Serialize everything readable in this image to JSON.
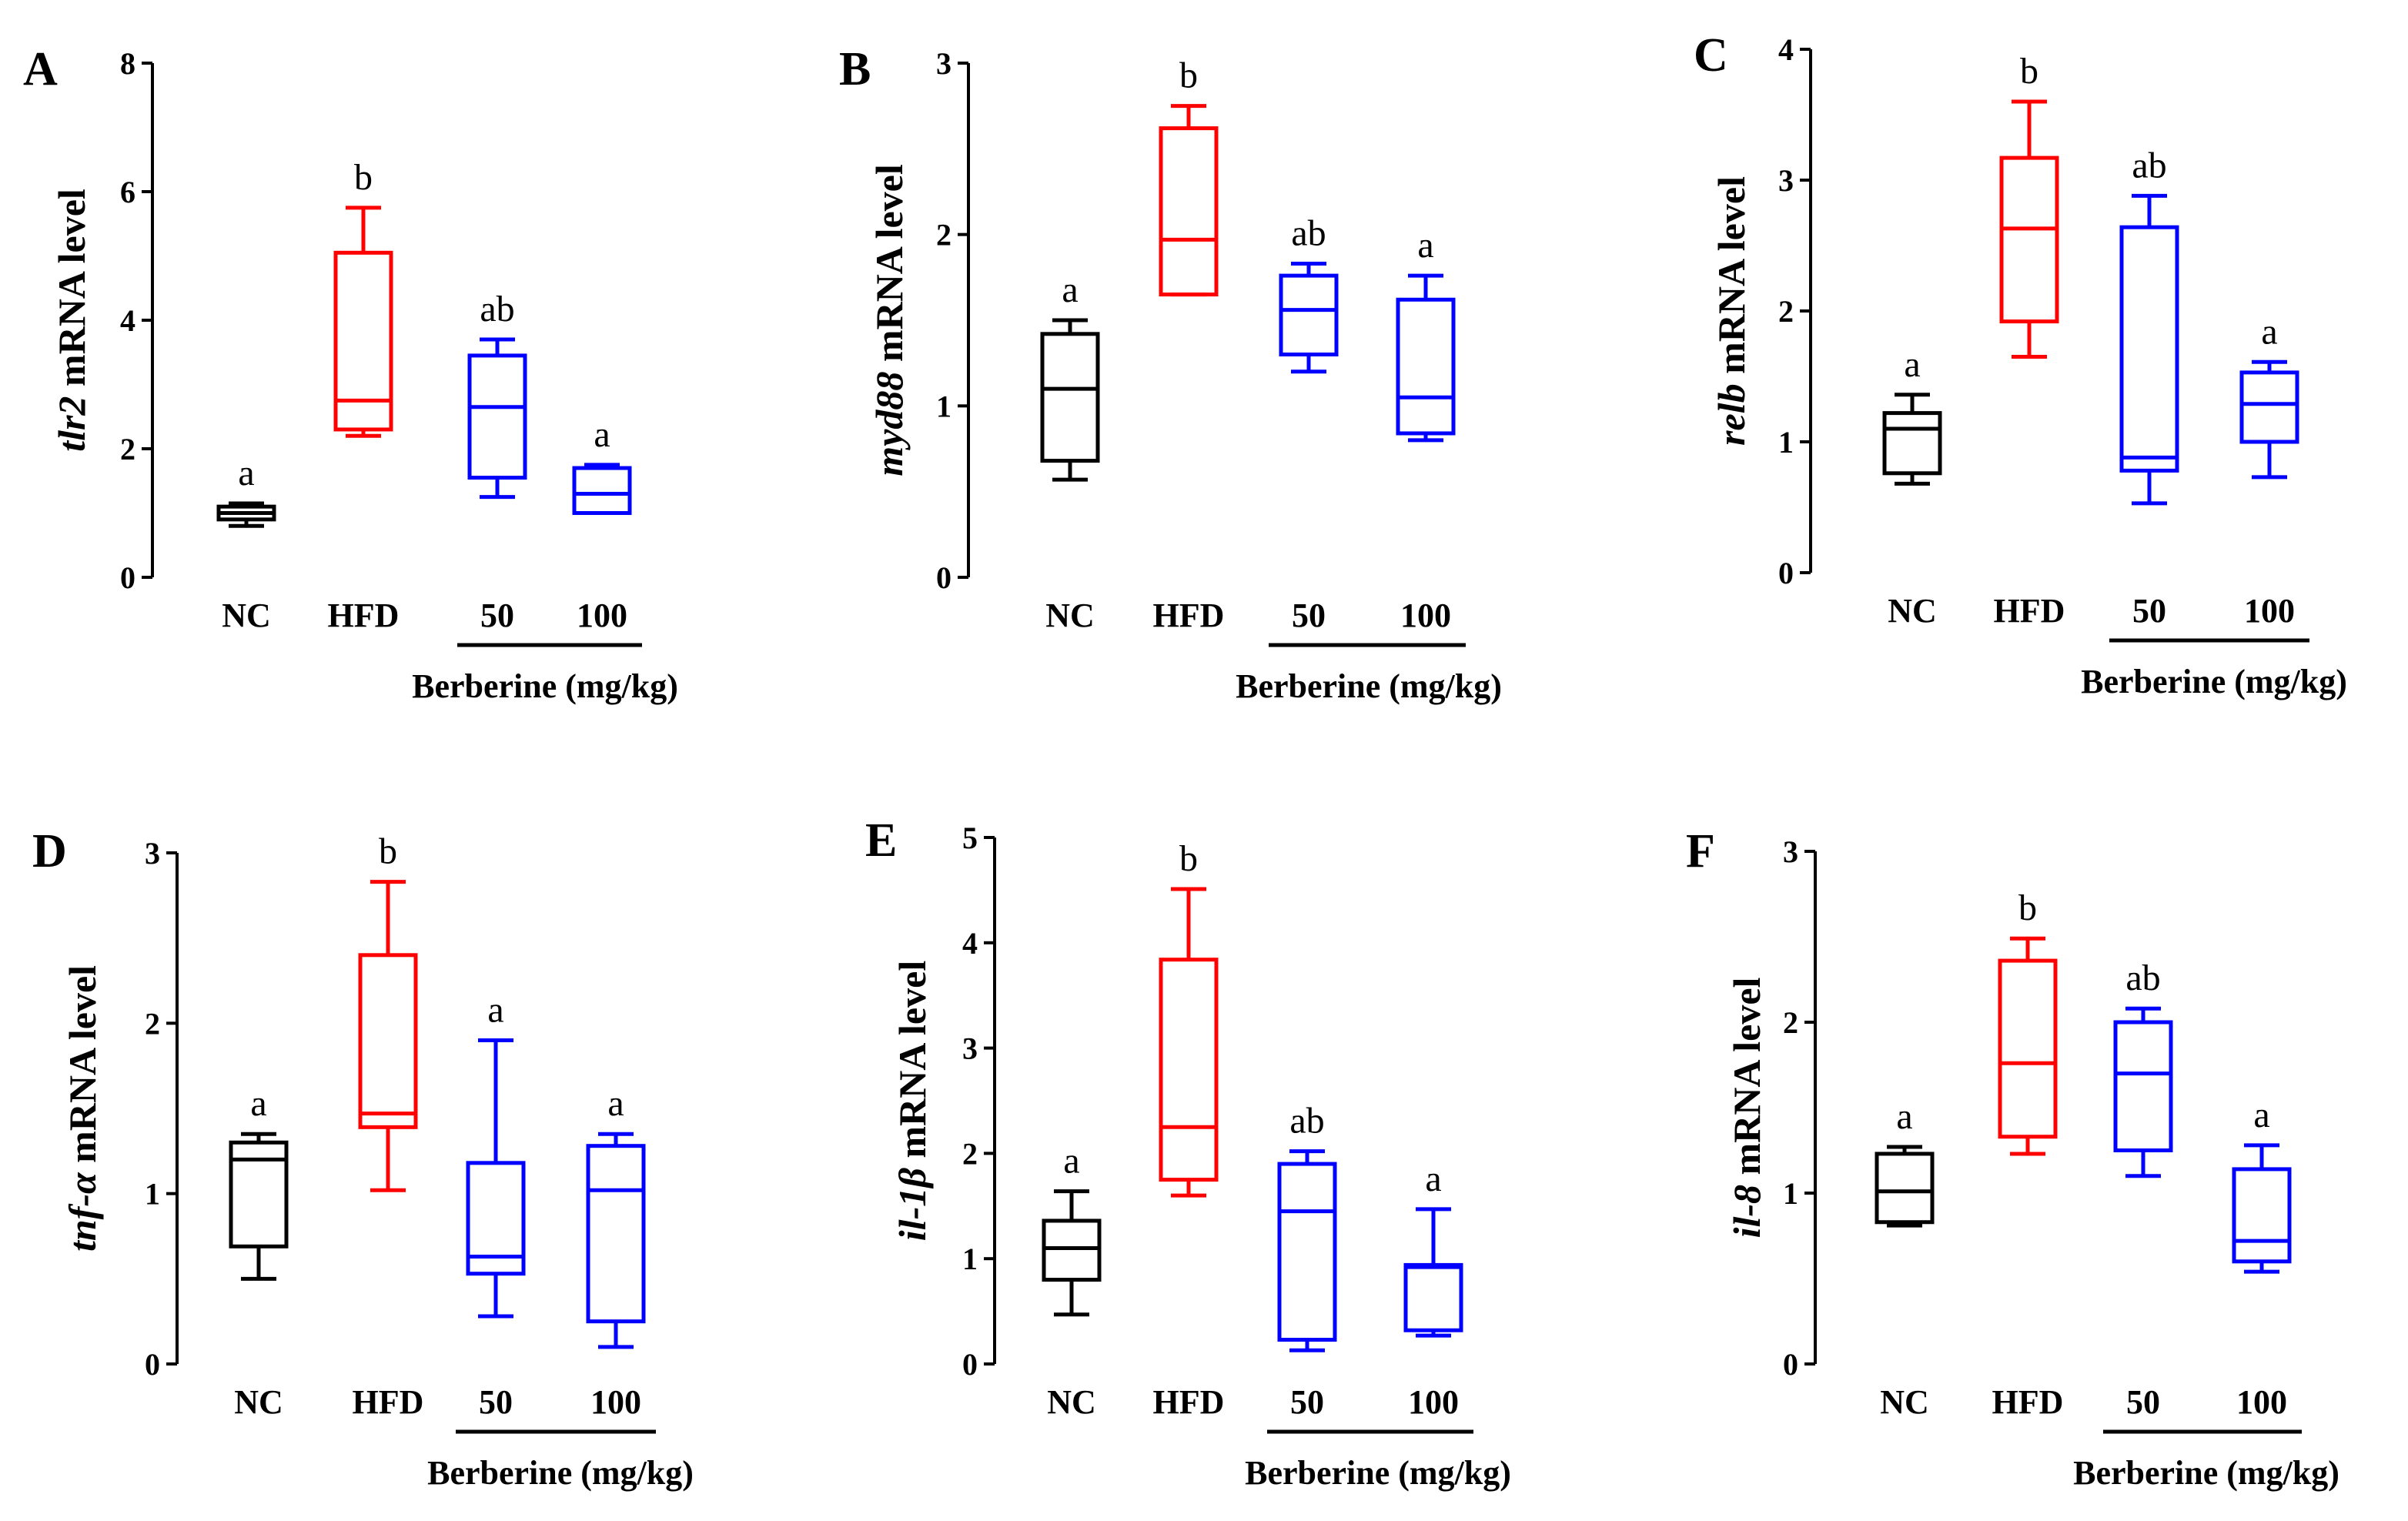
{
  "figure": {
    "colors": {
      "NC": "#000000",
      "HFD": "#ff0000",
      "50": "#0000ff",
      "100": "#0000ff"
    },
    "panels": [
      {
        "letter": "A",
        "ylabel": {
          "gene": "tlr2",
          "suffix": " mRNA level"
        },
        "group_label": "Berberine (mg/kg)",
        "chart_data": {
          "type": "box",
          "categories": [
            "NC",
            "HFD",
            "50",
            "100"
          ],
          "ylim": [
            0,
            8
          ],
          "yticks": [
            0,
            2,
            4,
            6,
            8
          ],
          "boxes": [
            {
              "min": 0.8,
              "q1": 0.9,
              "median": 1.0,
              "q3": 1.1,
              "max": 1.15
            },
            {
              "min": 2.2,
              "q1": 2.3,
              "median": 2.75,
              "q3": 5.05,
              "max": 5.75
            },
            {
              "min": 1.25,
              "q1": 1.55,
              "median": 2.65,
              "q3": 3.45,
              "max": 3.7
            },
            {
              "min": 1.0,
              "q1": 1.0,
              "median": 1.3,
              "q3": 1.7,
              "max": 1.75
            }
          ],
          "letters": [
            "a",
            "b",
            "ab",
            "a"
          ]
        }
      },
      {
        "letter": "B",
        "ylabel": {
          "gene": "myd88",
          "suffix": " mRNA level"
        },
        "group_label": "Berberine (mg/kg)",
        "chart_data": {
          "type": "box",
          "categories": [
            "NC",
            "HFD",
            "50",
            "100"
          ],
          "ylim": [
            0,
            3
          ],
          "yticks": [
            0,
            1,
            2,
            3
          ],
          "boxes": [
            {
              "min": 0.57,
              "q1": 0.68,
              "median": 1.1,
              "q3": 1.42,
              "max": 1.5
            },
            {
              "min": 1.65,
              "q1": 1.65,
              "median": 1.97,
              "q3": 2.62,
              "max": 2.75
            },
            {
              "min": 1.2,
              "q1": 1.3,
              "median": 1.56,
              "q3": 1.76,
              "max": 1.83
            },
            {
              "min": 0.8,
              "q1": 0.84,
              "median": 1.05,
              "q3": 1.62,
              "max": 1.76
            }
          ],
          "letters": [
            "a",
            "b",
            "ab",
            "a"
          ]
        }
      },
      {
        "letter": "C",
        "ylabel": {
          "gene": "relb",
          "suffix": " mRNA level"
        },
        "group_label": "Berberine (mg/kg)",
        "chart_data": {
          "type": "box",
          "categories": [
            "NC",
            "HFD",
            "50",
            "100"
          ],
          "ylim": [
            0,
            4
          ],
          "yticks": [
            0,
            1,
            2,
            3,
            4
          ],
          "boxes": [
            {
              "min": 0.68,
              "q1": 0.76,
              "median": 1.1,
              "q3": 1.22,
              "max": 1.36
            },
            {
              "min": 1.65,
              "q1": 1.92,
              "median": 2.63,
              "q3": 3.17,
              "max": 3.6
            },
            {
              "min": 0.53,
              "q1": 0.78,
              "median": 0.88,
              "q3": 2.64,
              "max": 2.88
            },
            {
              "min": 0.73,
              "q1": 1.0,
              "median": 1.29,
              "q3": 1.53,
              "max": 1.61
            }
          ],
          "letters": [
            "a",
            "b",
            "ab",
            "a"
          ]
        }
      },
      {
        "letter": "D",
        "ylabel": {
          "gene": "tnf-α",
          "suffix": " mRNA level"
        },
        "group_label": "Berberine (mg/kg)",
        "chart_data": {
          "type": "box",
          "categories": [
            "NC",
            "HFD",
            "50",
            "100"
          ],
          "ylim": [
            0,
            3
          ],
          "yticks": [
            0,
            1,
            2,
            3
          ],
          "boxes": [
            {
              "min": 0.5,
              "q1": 0.69,
              "median": 1.2,
              "q3": 1.3,
              "max": 1.35
            },
            {
              "min": 1.02,
              "q1": 1.39,
              "median": 1.47,
              "q3": 2.4,
              "max": 2.83
            },
            {
              "min": 0.28,
              "q1": 0.53,
              "median": 0.63,
              "q3": 1.18,
              "max": 1.9
            },
            {
              "min": 0.1,
              "q1": 0.25,
              "median": 1.02,
              "q3": 1.28,
              "max": 1.35
            }
          ],
          "letters": [
            "a",
            "b",
            "a",
            "a"
          ]
        }
      },
      {
        "letter": "E",
        "ylabel": {
          "gene": "il-1β",
          "suffix": " mRNA level"
        },
        "group_label": "Berberine (mg/kg)",
        "chart_data": {
          "type": "box",
          "categories": [
            "NC",
            "HFD",
            "50",
            "100"
          ],
          "ylim": [
            0,
            5
          ],
          "yticks": [
            0,
            1,
            2,
            3,
            4,
            5
          ],
          "boxes": [
            {
              "min": 0.47,
              "q1": 0.8,
              "median": 1.1,
              "q3": 1.36,
              "max": 1.64
            },
            {
              "min": 1.6,
              "q1": 1.75,
              "median": 2.25,
              "q3": 3.84,
              "max": 4.51
            },
            {
              "min": 0.13,
              "q1": 0.23,
              "median": 1.45,
              "q3": 1.9,
              "max": 2.02
            },
            {
              "min": 0.27,
              "q1": 0.32,
              "median": 0.92,
              "q3": 0.94,
              "max": 1.47
            }
          ],
          "letters": [
            "a",
            "b",
            "ab",
            "a"
          ]
        }
      },
      {
        "letter": "F",
        "ylabel": {
          "gene": "il-8",
          "suffix": " mRNA level"
        },
        "group_label": "Berberine (mg/kg)",
        "chart_data": {
          "type": "box",
          "categories": [
            "NC",
            "HFD",
            "50",
            "100"
          ],
          "ylim": [
            0,
            3
          ],
          "yticks": [
            0,
            1,
            2,
            3
          ],
          "boxes": [
            {
              "min": 0.81,
              "q1": 0.83,
              "median": 1.01,
              "q3": 1.23,
              "max": 1.27
            },
            {
              "min": 1.23,
              "q1": 1.33,
              "median": 1.76,
              "q3": 2.36,
              "max": 2.49
            },
            {
              "min": 1.1,
              "q1": 1.25,
              "median": 1.7,
              "q3": 2.0,
              "max": 2.08
            },
            {
              "min": 0.54,
              "q1": 0.6,
              "median": 0.72,
              "q3": 1.14,
              "max": 1.28
            }
          ],
          "letters": [
            "a",
            "b",
            "ab",
            "a"
          ]
        }
      }
    ]
  }
}
